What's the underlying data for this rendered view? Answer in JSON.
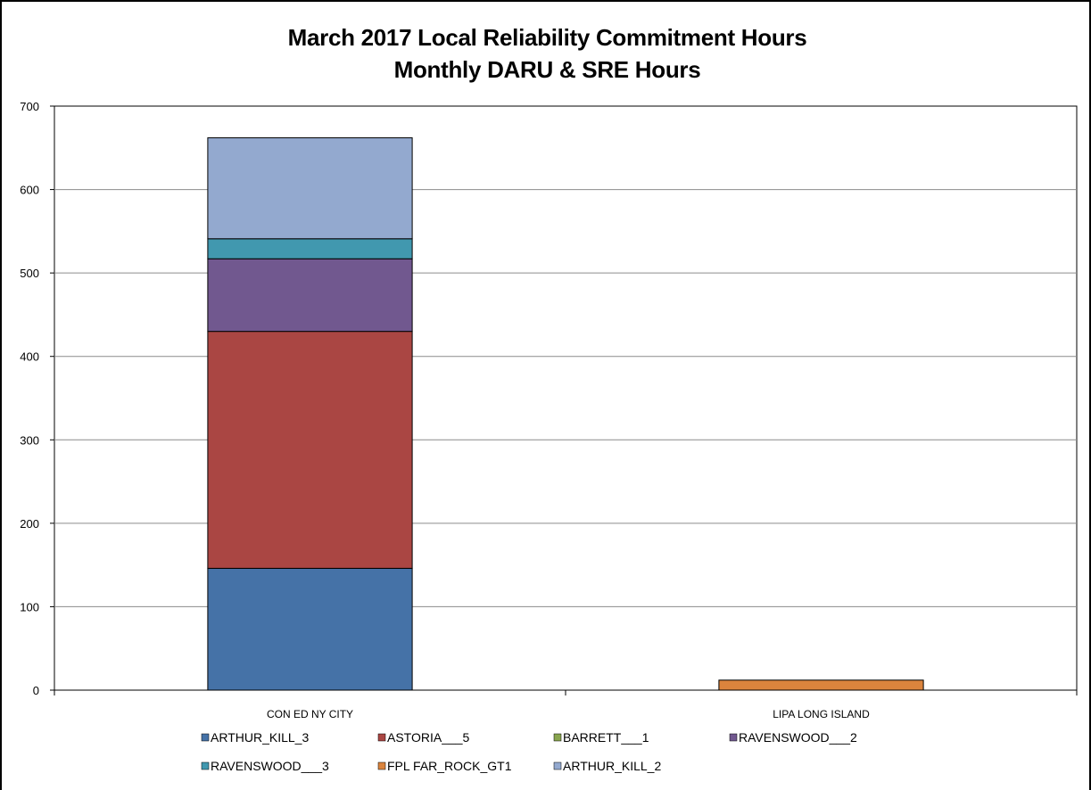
{
  "chart_data": {
    "type": "bar",
    "stacked": true,
    "title": "March 2017 Local Reliability Commitment Hours",
    "subtitle": "Monthly DARU & SRE Hours",
    "categories": [
      "CON ED NY CITY",
      "LIPA LONG ISLAND"
    ],
    "ylim": [
      0,
      700
    ],
    "yticks": [
      0,
      100,
      200,
      300,
      400,
      500,
      600,
      700
    ],
    "grid": true,
    "legend_position": "bottom",
    "series": [
      {
        "name": "ARTHUR_KILL_3",
        "color": "#4572A7",
        "values": [
          146,
          0
        ]
      },
      {
        "name": "ASTORIA___5",
        "color": "#AA4643",
        "values": [
          284,
          0
        ]
      },
      {
        "name": "BARRETT___1",
        "color": "#89A54E",
        "values": [
          0,
          0
        ]
      },
      {
        "name": "RAVENSWOOD___2",
        "color": "#71588F",
        "values": [
          87,
          0
        ]
      },
      {
        "name": "RAVENSWOOD___3",
        "color": "#4198AF",
        "values": [
          24,
          0
        ]
      },
      {
        "name": "FPL FAR_ROCK_GT1",
        "color": "#DB843D",
        "values": [
          0,
          12
        ]
      },
      {
        "name": "ARTHUR_KILL_2",
        "color": "#93A9CF",
        "values": [
          121,
          0
        ]
      }
    ]
  }
}
